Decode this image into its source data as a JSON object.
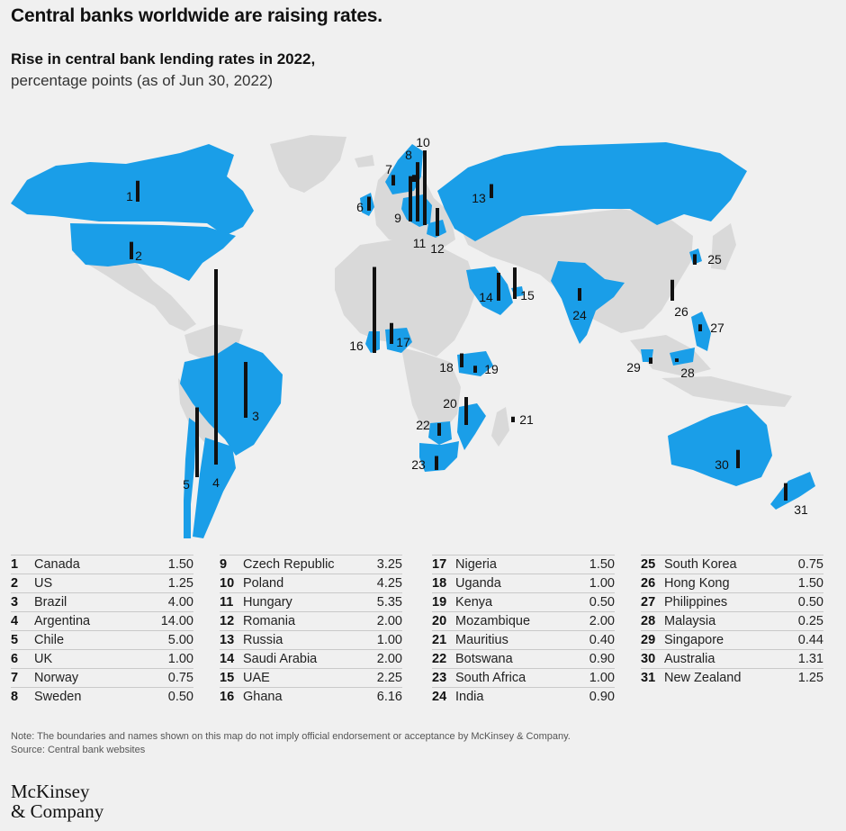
{
  "header": {
    "title": "Central banks worldwide are raising rates.",
    "subtitle": "Rise in central bank lending rates in 2022,",
    "subtitle2": "percentage points (as of Jun 30, 2022)"
  },
  "colors": {
    "highlight": "#1a9ee8",
    "land": "#d9d9d9",
    "bar": "#111111",
    "background": "#f0f0f0"
  },
  "chart_data": {
    "type": "bar",
    "title": "Rise in central bank lending rates in 2022,",
    "subtitle": "percentage points (as of Jun 30, 2022)",
    "categories": [
      "Canada",
      "US",
      "Brazil",
      "Argentina",
      "Chile",
      "UK",
      "Norway",
      "Sweden",
      "Czech Republic",
      "Poland",
      "Hungary",
      "Romania",
      "Russia",
      "Saudi Arabia",
      "UAE",
      "Ghana",
      "Nigeria",
      "Uganda",
      "Kenya",
      "Mozambique",
      "Mauritius",
      "Botswana",
      "South Africa",
      "India",
      "South Korea",
      "Hong Kong",
      "Philippines",
      "Malaysia",
      "Singapore",
      "Australia",
      "New Zealand"
    ],
    "values": [
      1.5,
      1.25,
      4.0,
      14.0,
      5.0,
      1.0,
      0.75,
      0.5,
      3.25,
      4.25,
      5.35,
      2.0,
      1.0,
      2.0,
      2.25,
      6.16,
      1.5,
      1.0,
      0.5,
      2.0,
      0.4,
      0.9,
      1.0,
      0.9,
      0.75,
      1.5,
      0.5,
      0.25,
      0.44,
      1.31,
      1.25
    ]
  },
  "legend": [
    [
      {
        "num": "1",
        "name": "Canada",
        "val": "1.50"
      },
      {
        "num": "2",
        "name": "US",
        "val": "1.25"
      },
      {
        "num": "3",
        "name": "Brazil",
        "val": "4.00"
      },
      {
        "num": "4",
        "name": "Argentina",
        "val": "14.00"
      },
      {
        "num": "5",
        "name": "Chile",
        "val": "5.00"
      },
      {
        "num": "6",
        "name": "UK",
        "val": "1.00"
      },
      {
        "num": "7",
        "name": "Norway",
        "val": "0.75"
      },
      {
        "num": "8",
        "name": "Sweden",
        "val": "0.50"
      }
    ],
    [
      {
        "num": "9",
        "name": "Czech Republic",
        "val": "3.25"
      },
      {
        "num": "10",
        "name": "Poland",
        "val": "4.25"
      },
      {
        "num": "11",
        "name": "Hungary",
        "val": "5.35"
      },
      {
        "num": "12",
        "name": "Romania",
        "val": "2.00"
      },
      {
        "num": "13",
        "name": "Russia",
        "val": "1.00"
      },
      {
        "num": "14",
        "name": "Saudi Arabia",
        "val": "2.00"
      },
      {
        "num": "15",
        "name": "UAE",
        "val": "2.25"
      },
      {
        "num": "16",
        "name": "Ghana",
        "val": "6.16"
      }
    ],
    [
      {
        "num": "17",
        "name": "Nigeria",
        "val": "1.50"
      },
      {
        "num": "18",
        "name": "Uganda",
        "val": "1.00"
      },
      {
        "num": "19",
        "name": "Kenya",
        "val": "0.50"
      },
      {
        "num": "20",
        "name": "Mozambique",
        "val": "2.00"
      },
      {
        "num": "21",
        "name": "Mauritius",
        "val": "0.40"
      },
      {
        "num": "22",
        "name": "Botswana",
        "val": "0.90"
      },
      {
        "num": "23",
        "name": "South Africa",
        "val": "1.00"
      },
      {
        "num": "24",
        "name": "India",
        "val": "0.90"
      }
    ],
    [
      {
        "num": "25",
        "name": "South Korea",
        "val": "0.75"
      },
      {
        "num": "26",
        "name": "Hong Kong",
        "val": "1.50"
      },
      {
        "num": "27",
        "name": "Philippines",
        "val": "0.50"
      },
      {
        "num": "28",
        "name": "Malaysia",
        "val": "0.25"
      },
      {
        "num": "29",
        "name": "Singapore",
        "val": "0.44"
      },
      {
        "num": "30",
        "name": "Australia",
        "val": "1.31"
      },
      {
        "num": "31",
        "name": "New Zealand",
        "val": "1.25"
      }
    ]
  ],
  "footer": {
    "note": "Note: The boundaries and names shown on this map do not imply official endorsement or acceptance by McKinsey & Company.",
    "source": "Source: Central bank websites",
    "logo_line1": "McKinsey",
    "logo_line2": "& Company"
  }
}
